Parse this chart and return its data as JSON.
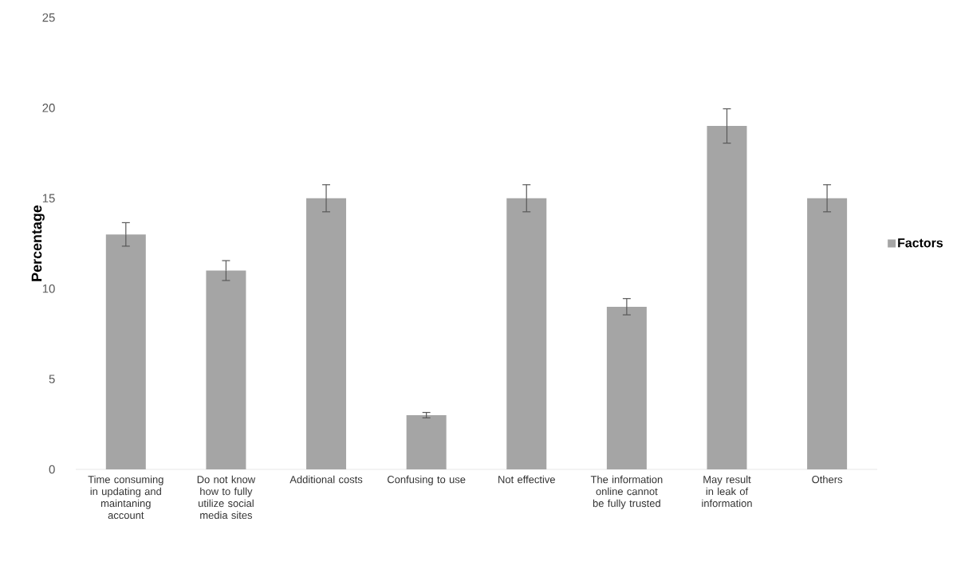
{
  "chart_data": {
    "type": "bar",
    "ylabel": "Percentage",
    "categories": [
      "Time consuming in updating and maintaning account",
      "Do not know how to fully utilize social media sites",
      "Additional costs",
      "Confusing to use",
      "Not effective",
      "The information online cannot be fully trusted",
      "May result in leak of information",
      "Others"
    ],
    "series": [
      {
        "name": "Factors",
        "color": "#a5a5a5",
        "values": [
          13,
          11,
          15,
          3,
          15,
          9,
          19,
          15
        ],
        "errors": [
          0.65,
          0.55,
          0.75,
          0.15,
          0.75,
          0.45,
          0.95,
          0.75
        ]
      }
    ],
    "ylim": [
      0,
      25
    ],
    "yticks": [
      0,
      5,
      10,
      15,
      20,
      25
    ],
    "grid": false,
    "legend": "right"
  }
}
